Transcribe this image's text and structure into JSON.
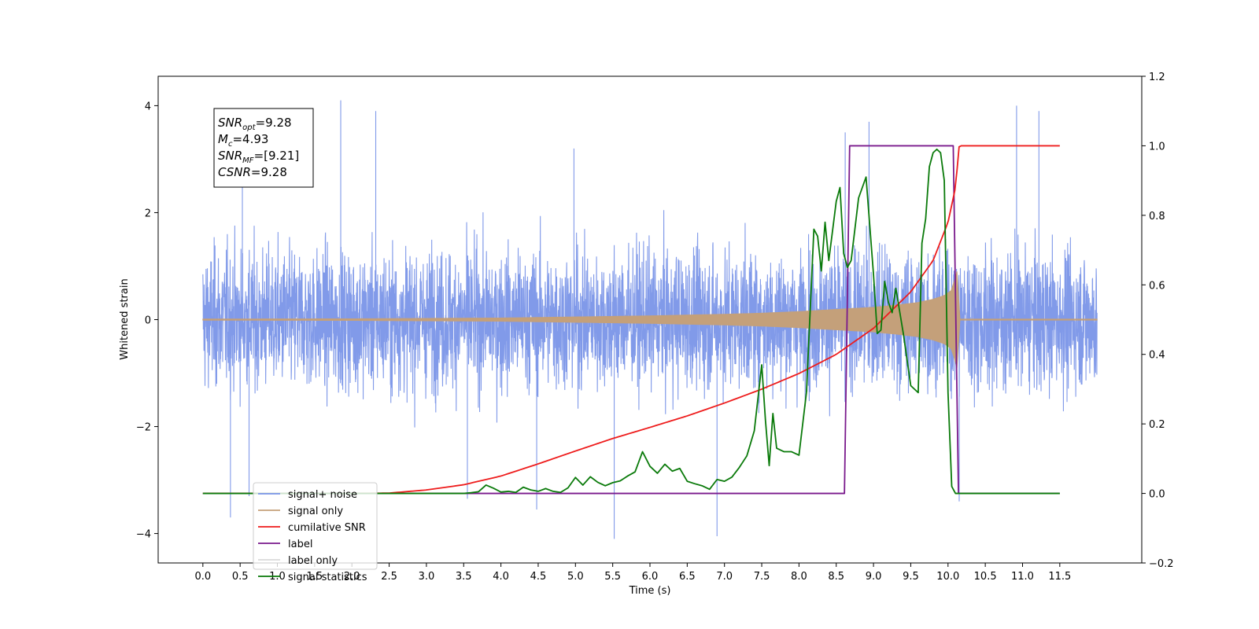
{
  "chart_data": {
    "type": "line",
    "xlabel": "Time (s)",
    "ylabel": "Whitened strain",
    "xlim": [
      -0.6,
      12.6
    ],
    "ylim": [
      -4.55,
      4.55
    ],
    "ylim_right": [
      -0.2,
      1.2
    ],
    "x_ticks": [
      "0.0",
      "0.5",
      "1.0",
      "1.5",
      "2.0",
      "2.5",
      "3.0",
      "3.5",
      "4.0",
      "4.5",
      "5.0",
      "5.5",
      "6.0",
      "6.5",
      "7.0",
      "7.5",
      "8.0",
      "8.5",
      "9.0",
      "9.5",
      "10.0",
      "10.5",
      "11.0",
      "11.5"
    ],
    "y_ticks": [
      "−4",
      "−2",
      "0",
      "2",
      "4"
    ],
    "y_ticks_right": [
      "−0.2",
      "0.0",
      "0.2",
      "0.4",
      "0.6",
      "0.8",
      "1.0",
      "1.2"
    ],
    "grid": false,
    "legend_position": "lower-left",
    "annotation": {
      "lines": [
        {
          "base": "SNR",
          "sub": "opt",
          "rest": "=9.28"
        },
        {
          "base": "M",
          "sub": "c",
          "rest": "=4.93"
        },
        {
          "base": "SNR",
          "sub": "MF",
          "rest": "=[9.21]"
        },
        {
          "base": "CSNR",
          "sub": "",
          "rest": "=9.28"
        }
      ]
    },
    "series": [
      {
        "name": "signal+ noise",
        "axis": "left",
        "color": "#7a95e8",
        "description_range": [
          -2.9,
          3.3
        ],
        "peaks_x": [
          0.37,
          0.53,
          0.62,
          1.85,
          2.32,
          3.55,
          4.48,
          4.98,
          5.52,
          6.9,
          8.62,
          8.94,
          10.15,
          10.92,
          11.22
        ],
        "peaks_y": [
          -3.7,
          3.1,
          -3.3,
          4.1,
          3.9,
          -3.35,
          -3.55,
          3.2,
          -4.1,
          -4.05,
          3.5,
          3.7,
          -3.4,
          4.0,
          3.9
        ]
      },
      {
        "name": "signal only",
        "axis": "left",
        "color": "#c4a07a",
        "envelope_x": [
          0.0,
          2.0,
          4.0,
          5.0,
          6.0,
          7.0,
          7.5,
          8.0,
          8.5,
          9.0,
          9.3,
          9.6,
          9.8,
          9.95,
          10.05,
          10.12,
          10.15
        ],
        "envelope_y": [
          0.01,
          0.015,
          0.03,
          0.05,
          0.07,
          0.1,
          0.12,
          0.15,
          0.19,
          0.23,
          0.27,
          0.32,
          0.38,
          0.45,
          0.55,
          0.9,
          0.02
        ]
      },
      {
        "name": "cumilative SNR",
        "axis": "right",
        "color": "#ee1c1c",
        "x": [
          0.0,
          2.0,
          2.5,
          3.0,
          3.5,
          4.0,
          4.5,
          5.0,
          5.5,
          6.0,
          6.5,
          7.0,
          7.5,
          8.0,
          8.5,
          9.0,
          9.5,
          9.8,
          10.0,
          10.1,
          10.15,
          11.5
        ],
        "values": [
          0.0,
          0.0,
          0.001,
          0.01,
          0.025,
          0.05,
          0.085,
          0.122,
          0.158,
          0.19,
          0.223,
          0.26,
          0.3,
          0.345,
          0.4,
          0.475,
          0.58,
          0.67,
          0.78,
          0.88,
          1.0,
          1.0
        ]
      },
      {
        "name": "label",
        "axis": "right",
        "color": "#7a1a8c",
        "x": [
          0.0,
          8.61,
          8.68,
          10.07,
          10.14,
          11.5
        ],
        "values": [
          0.0,
          0.0,
          1.0,
          1.0,
          0.0,
          0.0
        ]
      },
      {
        "name": "label only",
        "axis": "right",
        "color": "#d9d9d9",
        "x": [],
        "values": []
      },
      {
        "name": "signal statistics",
        "axis": "right",
        "color": "#0a7a0a",
        "x": [
          0.0,
          3.5,
          3.6,
          3.7,
          3.8,
          3.9,
          4.0,
          4.1,
          4.2,
          4.3,
          4.4,
          4.5,
          4.6,
          4.7,
          4.8,
          4.9,
          5.0,
          5.1,
          5.2,
          5.3,
          5.4,
          5.5,
          5.6,
          5.7,
          5.8,
          5.9,
          6.0,
          6.1,
          6.2,
          6.3,
          6.4,
          6.5,
          6.6,
          6.7,
          6.8,
          6.9,
          7.0,
          7.1,
          7.2,
          7.3,
          7.4,
          7.5,
          7.55,
          7.6,
          7.65,
          7.7,
          7.8,
          7.9,
          8.0,
          8.1,
          8.2,
          8.25,
          8.3,
          8.35,
          8.4,
          8.5,
          8.55,
          8.6,
          8.65,
          8.7,
          8.8,
          8.9,
          9.0,
          9.05,
          9.1,
          9.15,
          9.2,
          9.25,
          9.3,
          9.4,
          9.5,
          9.6,
          9.65,
          9.7,
          9.75,
          9.8,
          9.85,
          9.9,
          9.95,
          10.0,
          10.05,
          10.1,
          10.15,
          10.2,
          11.5
        ],
        "values": [
          0.0,
          0.0,
          0.002,
          0.005,
          0.024,
          0.015,
          0.004,
          0.006,
          0.003,
          0.018,
          0.01,
          0.006,
          0.014,
          0.006,
          0.003,
          0.016,
          0.046,
          0.024,
          0.048,
          0.032,
          0.022,
          0.031,
          0.036,
          0.05,
          0.062,
          0.12,
          0.078,
          0.058,
          0.084,
          0.064,
          0.072,
          0.035,
          0.028,
          0.022,
          0.012,
          0.04,
          0.035,
          0.047,
          0.075,
          0.108,
          0.18,
          0.37,
          0.21,
          0.08,
          0.23,
          0.13,
          0.12,
          0.12,
          0.11,
          0.29,
          0.76,
          0.74,
          0.64,
          0.78,
          0.67,
          0.84,
          0.88,
          0.69,
          0.65,
          0.67,
          0.85,
          0.91,
          0.63,
          0.46,
          0.47,
          0.61,
          0.55,
          0.52,
          0.59,
          0.46,
          0.31,
          0.29,
          0.72,
          0.79,
          0.94,
          0.98,
          0.99,
          0.98,
          0.9,
          0.29,
          0.02,
          0.0,
          0.0,
          0.0,
          0.0
        ]
      }
    ]
  }
}
